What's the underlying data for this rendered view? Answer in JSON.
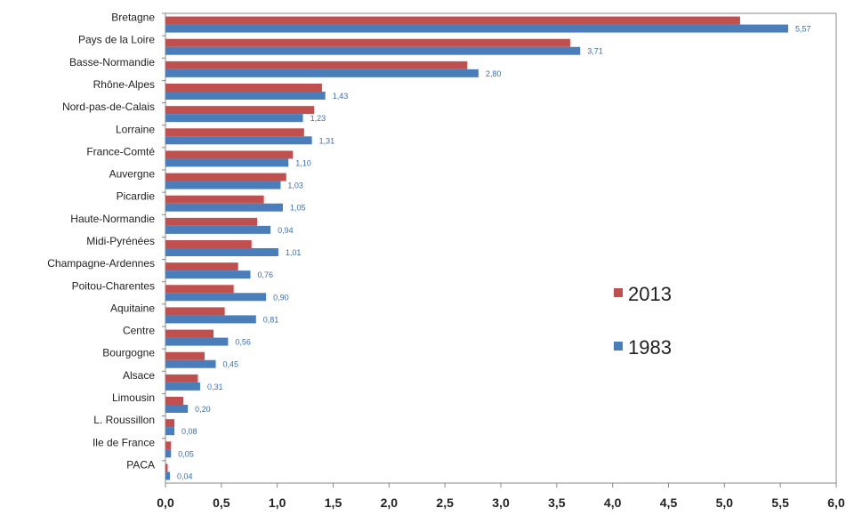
{
  "chart_data": {
    "type": "bar",
    "orientation": "horizontal",
    "categories": [
      "Bretagne",
      "Pays de la Loire",
      "Basse-Normandie",
      "Rhône-Alpes",
      "Nord-pas-de-Calais",
      "Lorraine",
      "France-Comté",
      "Auvergne",
      "Picardie",
      "Haute-Normandie",
      "Midi-Pyrénées",
      "Champagne-Ardennes",
      "Poitou-Charentes",
      "Aquitaine",
      "Centre",
      "Bourgogne",
      "Alsace",
      "Limousin",
      "L. Roussillon",
      "Ile de France",
      "PACA"
    ],
    "series": [
      {
        "name": "2013",
        "color": "#c0504d",
        "values": [
          5.14,
          3.62,
          2.7,
          1.4,
          1.33,
          1.24,
          1.14,
          1.08,
          0.88,
          0.82,
          0.77,
          0.65,
          0.61,
          0.53,
          0.43,
          0.35,
          0.29,
          0.16,
          0.08,
          0.05,
          0.02
        ]
      },
      {
        "name": "1983",
        "color": "#4a7ebb",
        "values": [
          5.57,
          3.71,
          2.8,
          1.43,
          1.23,
          1.31,
          1.1,
          1.03,
          1.05,
          0.94,
          1.01,
          0.76,
          0.9,
          0.81,
          0.56,
          0.45,
          0.31,
          0.2,
          0.08,
          0.05,
          0.04
        ],
        "data_labels": [
          "5,57",
          "3,71",
          "2,80",
          "1,43",
          "1,23",
          "1,31",
          "1,10",
          "1,03",
          "1,05",
          "0,94",
          "1,01",
          "0,76",
          "0,90",
          "0,81",
          "0,56",
          "0,45",
          "0,31",
          "0,20",
          "0,08",
          "0,05",
          "0,04"
        ]
      }
    ],
    "xlim": [
      0,
      6
    ],
    "x_ticks": [
      0,
      0.5,
      1,
      1.5,
      2,
      2.5,
      3,
      3.5,
      4,
      4.5,
      5,
      5.5,
      6
    ],
    "x_tick_labels": [
      "0,0",
      "0,5",
      "1,0",
      "1,5",
      "2,0",
      "2,5",
      "3,0",
      "3,5",
      "4,0",
      "4,5",
      "5,0",
      "5,5",
      "6,0"
    ],
    "grid": false,
    "legend_position": "right",
    "title": "",
    "xlabel": "",
    "ylabel": ""
  }
}
